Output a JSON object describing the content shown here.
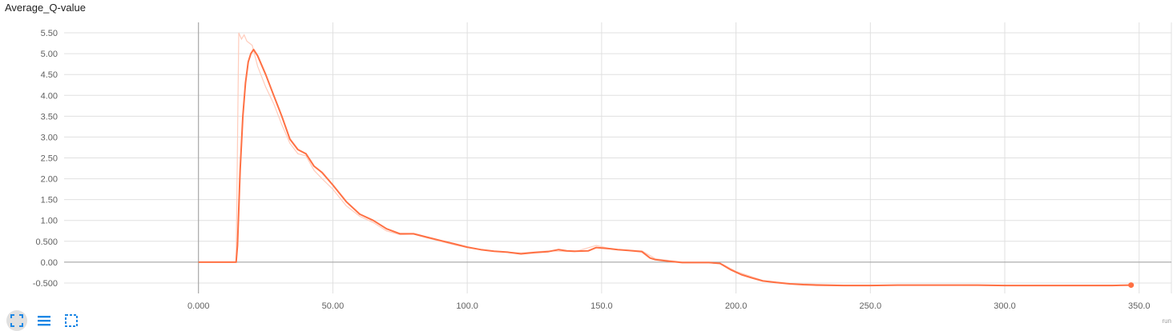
{
  "card": {
    "title": "Average_Q-value",
    "corner_label": "run"
  },
  "toolbar": {
    "buttons": [
      {
        "name": "fit-domain-button",
        "icon": "fit-to-data-icon"
      },
      {
        "name": "toggle-log-scale-button",
        "icon": "menu-lines-icon"
      },
      {
        "name": "toggle-selection-button",
        "icon": "dashed-square-icon"
      }
    ]
  },
  "colors": {
    "line": "#ff7043",
    "raw_line": "#ffccbc",
    "accent": "#1e88e5",
    "grid": "#e0e0e0",
    "axis": "#9e9e9e"
  },
  "chart_data": {
    "type": "line",
    "title": "Average_Q-value",
    "xlabel": "",
    "ylabel": "",
    "xlim": [
      -50,
      362
    ],
    "ylim": [
      -0.75,
      5.75
    ],
    "grid": true,
    "x_ticks": [
      "0.000",
      "50.00",
      "100.0",
      "150.0",
      "200.0",
      "250.0",
      "300.0",
      "350.0"
    ],
    "x_tick_values": [
      0,
      50,
      100,
      150,
      200,
      250,
      300,
      350
    ],
    "y_ticks": [
      "-0.500",
      "0.00",
      "0.500",
      "1.00",
      "1.50",
      "2.00",
      "2.50",
      "3.00",
      "3.50",
      "4.00",
      "4.50",
      "5.00",
      "5.50"
    ],
    "y_tick_values": [
      -0.5,
      0,
      0.5,
      1,
      1.5,
      2,
      2.5,
      3,
      3.5,
      4,
      4.5,
      5,
      5.5
    ],
    "series": [
      {
        "smoothed": true,
        "x": [
          0,
          14,
          14.5,
          15.5,
          16.5,
          17.5,
          18.5,
          19.5,
          20.5,
          22,
          25,
          28,
          31,
          34,
          37,
          40,
          43,
          46,
          50,
          55,
          60,
          65,
          70,
          75,
          80,
          85,
          90,
          95,
          100,
          105,
          110,
          115,
          120,
          125,
          130,
          134,
          137,
          140,
          145,
          148,
          152,
          156,
          160,
          165,
          168,
          170,
          175,
          180,
          185,
          190,
          194,
          198,
          202,
          206,
          210,
          215,
          220,
          225,
          230,
          240,
          250,
          260,
          270,
          280,
          290,
          300,
          310,
          320,
          330,
          340,
          347
        ],
        "y": [
          0,
          0,
          0.4,
          2.2,
          3.5,
          4.3,
          4.8,
          5.0,
          5.1,
          4.95,
          4.5,
          4.0,
          3.5,
          2.95,
          2.7,
          2.6,
          2.3,
          2.15,
          1.85,
          1.45,
          1.15,
          1.0,
          0.8,
          0.68,
          0.68,
          0.6,
          0.52,
          0.44,
          0.36,
          0.3,
          0.26,
          0.24,
          0.2,
          0.23,
          0.25,
          0.3,
          0.27,
          0.26,
          0.27,
          0.35,
          0.33,
          0.3,
          0.28,
          0.25,
          0.1,
          0.06,
          0.02,
          -0.01,
          -0.01,
          -0.01,
          -0.03,
          -0.18,
          -0.3,
          -0.38,
          -0.45,
          -0.49,
          -0.52,
          -0.54,
          -0.55,
          -0.56,
          -0.56,
          -0.55,
          -0.55,
          -0.55,
          -0.55,
          -0.56,
          -0.56,
          -0.56,
          -0.56,
          -0.56,
          -0.55
        ]
      },
      {
        "smoothed": false,
        "x": [
          14,
          15,
          16,
          17,
          18,
          19,
          20,
          22,
          25,
          28,
          31,
          34,
          37,
          40,
          43,
          46,
          50,
          55,
          60,
          65,
          70,
          75,
          80,
          85,
          90,
          95,
          100,
          110,
          120,
          130,
          140,
          148,
          155,
          165,
          170,
          180,
          190,
          195,
          200,
          210,
          220,
          240,
          260,
          300,
          347
        ],
        "y": [
          0,
          5.5,
          5.35,
          5.45,
          5.3,
          5.25,
          5.2,
          4.7,
          4.2,
          3.8,
          3.3,
          2.85,
          2.6,
          2.55,
          2.2,
          2.0,
          1.75,
          1.35,
          1.1,
          0.95,
          0.75,
          0.66,
          0.67,
          0.58,
          0.5,
          0.42,
          0.35,
          0.26,
          0.22,
          0.27,
          0.25,
          0.4,
          0.3,
          0.27,
          0.08,
          0.0,
          -0.01,
          -0.05,
          -0.22,
          -0.44,
          -0.51,
          -0.55,
          -0.55,
          -0.56,
          -0.55
        ]
      }
    ]
  }
}
